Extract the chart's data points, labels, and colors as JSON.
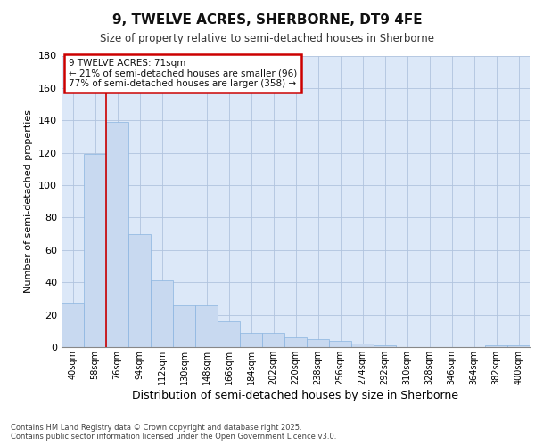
{
  "title": "9, TWELVE ACRES, SHERBORNE, DT9 4FE",
  "subtitle": "Size of property relative to semi-detached houses in Sherborne",
  "xlabel": "Distribution of semi-detached houses by size in Sherborne",
  "ylabel": "Number of semi-detached properties",
  "categories": [
    "40sqm",
    "58sqm",
    "76sqm",
    "94sqm",
    "112sqm",
    "130sqm",
    "148sqm",
    "166sqm",
    "184sqm",
    "202sqm",
    "220sqm",
    "238sqm",
    "256sqm",
    "274sqm",
    "292sqm",
    "310sqm",
    "328sqm",
    "346sqm",
    "364sqm",
    "382sqm",
    "400sqm"
  ],
  "values": [
    27,
    119,
    139,
    70,
    41,
    26,
    26,
    16,
    9,
    9,
    6,
    5,
    4,
    2,
    1,
    0,
    0,
    0,
    0,
    1,
    1
  ],
  "bar_color": "#c8d9f0",
  "bar_edge_color": "#8ab4e0",
  "grid_color": "#b0c4de",
  "annotation_text": "9 TWELVE ACRES: 71sqm\n← 21% of semi-detached houses are smaller (96)\n77% of semi-detached houses are larger (358) →",
  "annotation_box_color": "#ffffff",
  "annotation_box_edge_color": "#cc0000",
  "red_line_x": 1.5,
  "background_color": "#ffffff",
  "plot_background_color": "#dce8f8",
  "footer_text": "Contains HM Land Registry data © Crown copyright and database right 2025.\nContains public sector information licensed under the Open Government Licence v3.0.",
  "ylim": [
    0,
    180
  ],
  "yticks": [
    0,
    20,
    40,
    60,
    80,
    100,
    120,
    140,
    160,
    180
  ]
}
